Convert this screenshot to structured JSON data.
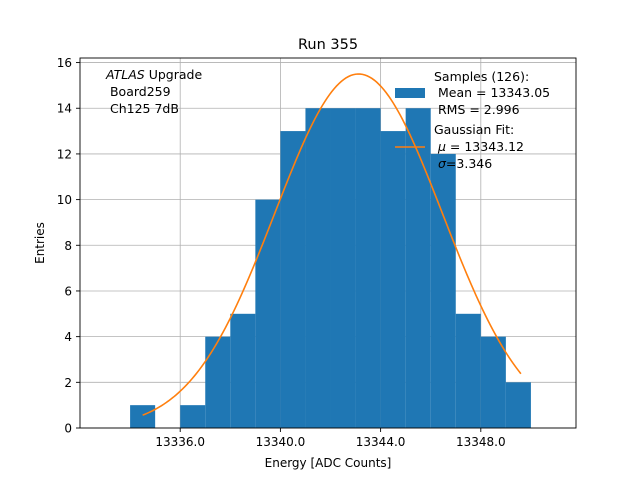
{
  "chart_data": {
    "type": "bar",
    "title": "Run 355",
    "xlabel": "Energy [ADC Counts]",
    "ylabel": "Entries",
    "xlim": [
      13332.0,
      13351.8
    ],
    "ylim": [
      0,
      16.2
    ],
    "xticks": [
      13336.0,
      13340.0,
      13344.0,
      13348.0
    ],
    "xtick_labels": [
      "13336.0",
      "13340.0",
      "13344.0",
      "13348.0"
    ],
    "yticks": [
      0,
      2,
      4,
      6,
      8,
      10,
      12,
      14,
      16
    ],
    "ytick_labels": [
      "0",
      "2",
      "4",
      "6",
      "8",
      "10",
      "12",
      "14",
      "16"
    ],
    "grid": true,
    "bar_color": "#1f77b4",
    "fit_color": "#ff7f0e",
    "histogram": {
      "bin_edges": [
        13334.0,
        13335.0,
        13336.0,
        13337.0,
        13338.0,
        13339.0,
        13340.0,
        13341.0,
        13342.0,
        13343.0,
        13344.0,
        13345.0,
        13346.0,
        13347.0,
        13348.0,
        13349.0,
        13350.0
      ],
      "counts": [
        1,
        0,
        1,
        4,
        5,
        10,
        13,
        14,
        14,
        14,
        13,
        14,
        12,
        5,
        4,
        2
      ]
    },
    "fit": {
      "type": "gaussian",
      "mu": 13343.12,
      "sigma": 3.346,
      "amplitude": 15.5,
      "x_range": [
        13334.5,
        13349.6
      ]
    },
    "annotation": {
      "line1_italic": "ATLAS",
      "line1_rest": " Upgrade",
      "line2": " Board259",
      "line3": " Ch125 7dB"
    },
    "legend": {
      "placement": "upper-right",
      "samples_title": "Samples (126):",
      "samples_mean": " Mean = 13343.05",
      "samples_rms": " RMS = 2.996",
      "fit_title": "Gaussian Fit:",
      "fit_mu_symbol": "μ",
      "fit_mu_rest": " = 13343.12",
      "fit_sigma_symbol": "σ",
      "fit_sigma_rest": "=3.346"
    }
  }
}
